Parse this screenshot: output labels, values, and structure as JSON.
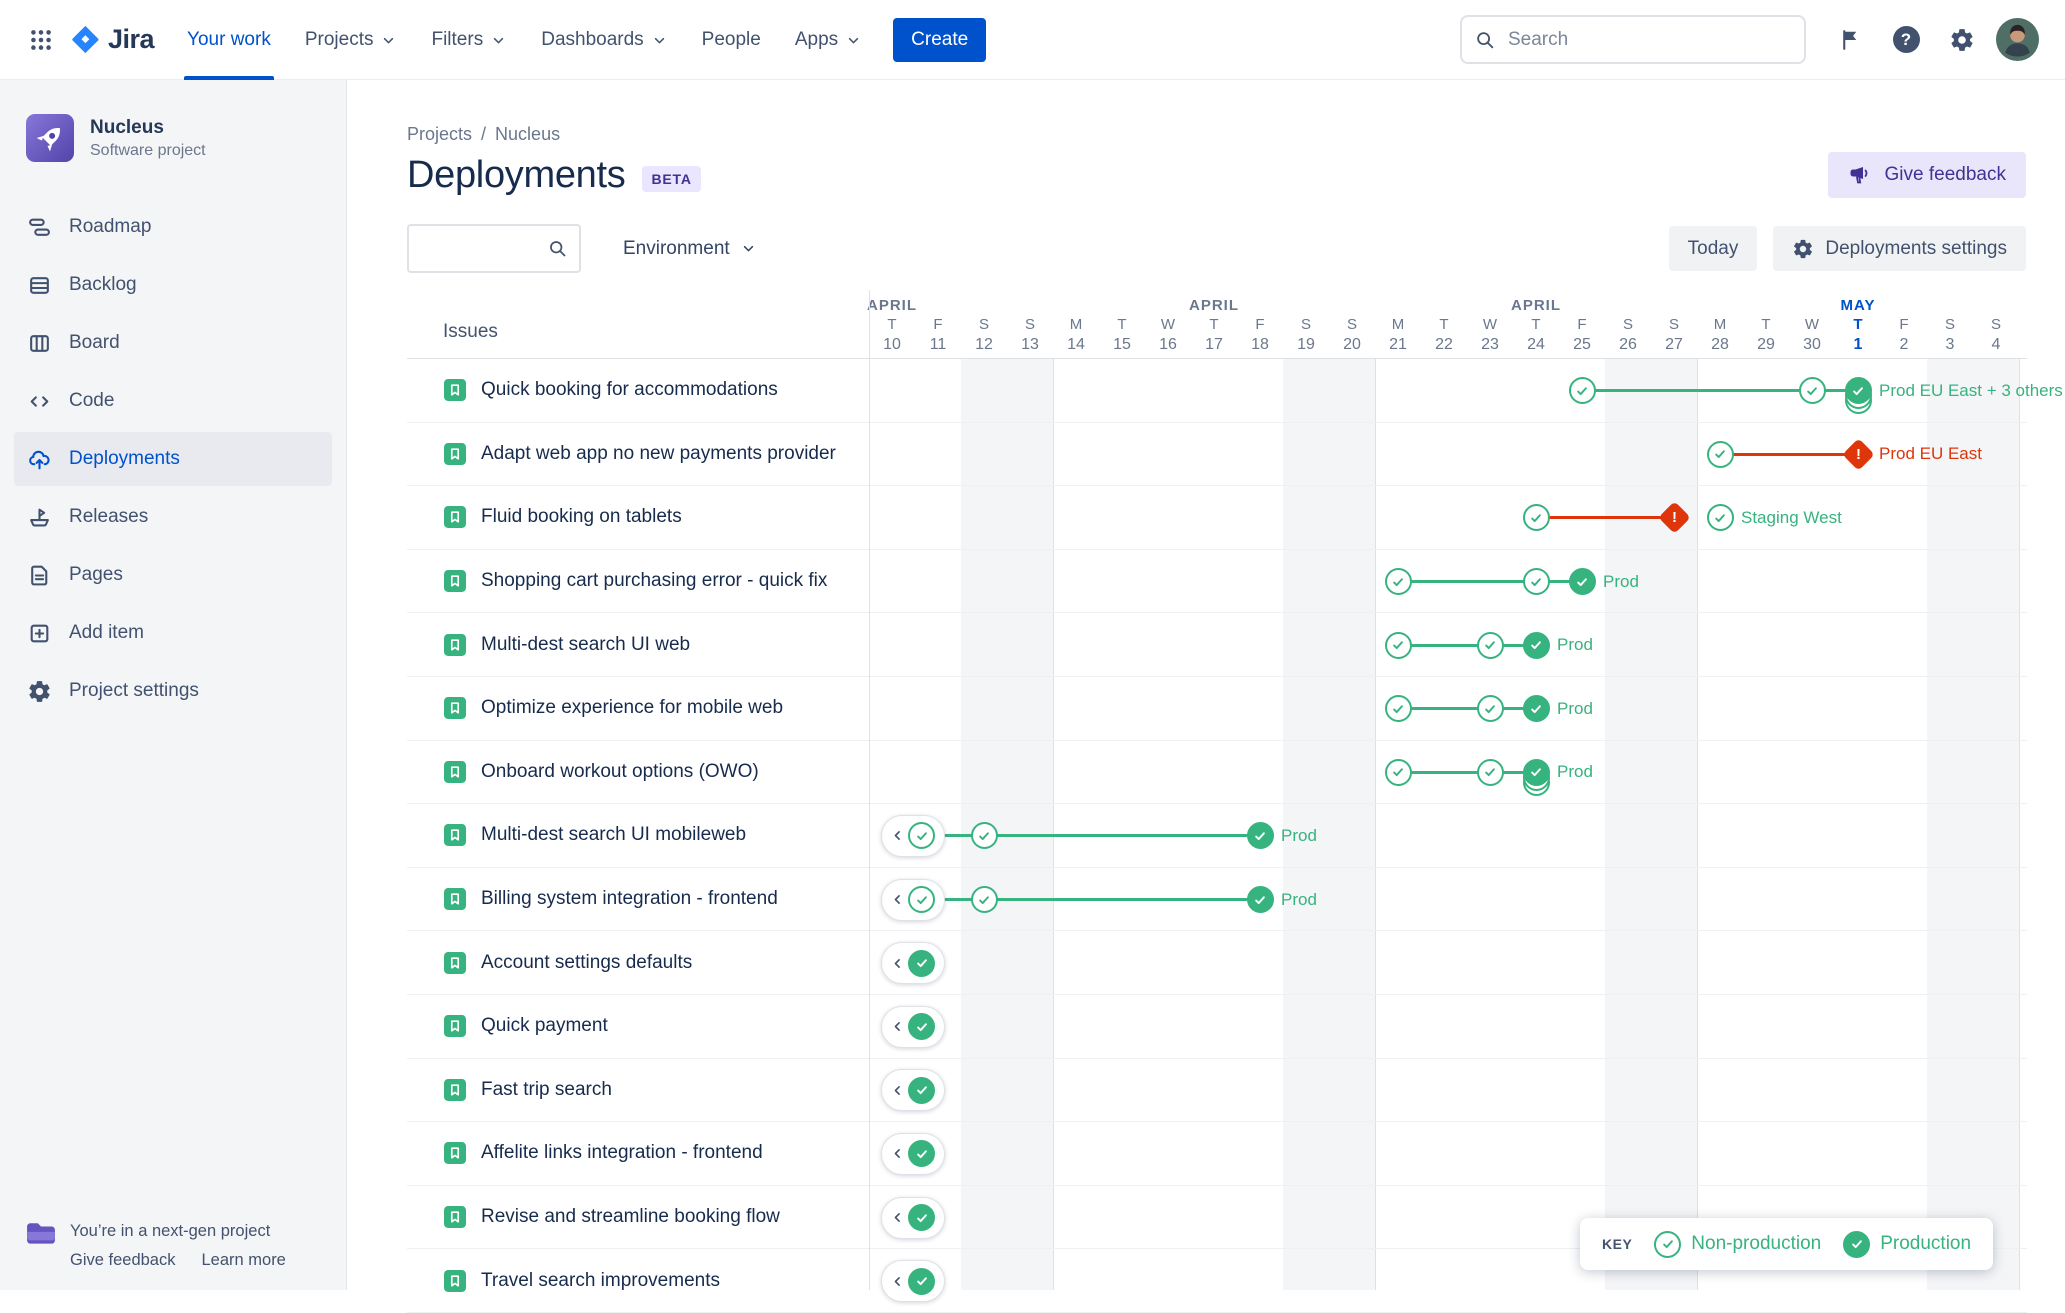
{
  "topnav": {
    "logo_text": "Jira",
    "items": [
      {
        "label": "Your work",
        "active": true,
        "chevron": false
      },
      {
        "label": "Projects",
        "chevron": true
      },
      {
        "label": "Filters",
        "chevron": true
      },
      {
        "label": "Dashboards",
        "chevron": true
      },
      {
        "label": "People",
        "chevron": false
      },
      {
        "label": "Apps",
        "chevron": true
      }
    ],
    "create_label": "Create",
    "search_placeholder": "Search"
  },
  "sidebar": {
    "project_name": "Nucleus",
    "project_type": "Software project",
    "items": [
      {
        "label": "Roadmap"
      },
      {
        "label": "Backlog"
      },
      {
        "label": "Board"
      },
      {
        "label": "Code"
      },
      {
        "label": "Deployments",
        "active": true
      },
      {
        "label": "Releases"
      },
      {
        "label": "Pages"
      },
      {
        "label": "Add item"
      },
      {
        "label": "Project settings"
      }
    ],
    "footer_message": "You’re in a next-gen project",
    "footer_links": [
      "Give feedback",
      "Learn more"
    ]
  },
  "main": {
    "breadcrumb": [
      "Projects",
      "Nucleus"
    ],
    "breadcrumb_separator": "/",
    "title": "Deployments",
    "beta_badge": "BETA",
    "give_feedback_label": "Give feedback",
    "environment_label": "Environment",
    "today_label": "Today",
    "settings_label": "Deployments settings",
    "issues_header": "Issues"
  },
  "legend": {
    "key_label": "KEY",
    "non_production": "Non-production",
    "production": "Production"
  },
  "colors": {
    "accent_blue": "#0052CC",
    "green": "#36B37E",
    "red": "#DE350B"
  },
  "timeline": {
    "months": [
      {
        "label": "APRIL",
        "day": 0
      },
      {
        "label": "APRIL",
        "day": 7
      },
      {
        "label": "APRIL",
        "day": 14
      },
      {
        "label": "MAY",
        "day": 21,
        "accent": true
      }
    ],
    "days": [
      {
        "d": "T",
        "n": 10
      },
      {
        "d": "F",
        "n": 11
      },
      {
        "d": "S",
        "n": 12,
        "we": true
      },
      {
        "d": "S",
        "n": 13,
        "we": true
      },
      {
        "d": "M",
        "n": 14
      },
      {
        "d": "T",
        "n": 15
      },
      {
        "d": "W",
        "n": 16
      },
      {
        "d": "T",
        "n": 17
      },
      {
        "d": "F",
        "n": 18
      },
      {
        "d": "S",
        "n": 19,
        "we": true
      },
      {
        "d": "S",
        "n": 20,
        "we": true
      },
      {
        "d": "M",
        "n": 21
      },
      {
        "d": "T",
        "n": 22
      },
      {
        "d": "W",
        "n": 23
      },
      {
        "d": "T",
        "n": 24
      },
      {
        "d": "F",
        "n": 25
      },
      {
        "d": "S",
        "n": 26,
        "we": true
      },
      {
        "d": "S",
        "n": 27,
        "we": true
      },
      {
        "d": "M",
        "n": 28
      },
      {
        "d": "T",
        "n": 29
      },
      {
        "d": "W",
        "n": 30
      },
      {
        "d": "T",
        "n": 1,
        "today": true
      },
      {
        "d": "F",
        "n": 2
      },
      {
        "d": "S",
        "n": 3,
        "we": true
      },
      {
        "d": "S",
        "n": 4,
        "we": true
      }
    ],
    "rows": [
      {
        "title": "Quick booking for accommodations",
        "e": [
          {
            "t": "line",
            "from": 15,
            "to": 20,
            "c": "green"
          },
          {
            "t": "line",
            "from": 20,
            "to": 21,
            "c": "green"
          },
          {
            "t": "check",
            "s": "outline",
            "d": 15
          },
          {
            "t": "check",
            "s": "outline",
            "d": 20
          },
          {
            "t": "check",
            "s": "stack",
            "d": 21
          },
          {
            "t": "label",
            "d": 21,
            "text": "Prod EU East + 3 others",
            "c": "green"
          }
        ]
      },
      {
        "title": "Adapt web app no new payments provider",
        "e": [
          {
            "t": "line",
            "from": 18,
            "to": 21,
            "c": "red"
          },
          {
            "t": "check",
            "s": "outline",
            "d": 18
          },
          {
            "t": "alert",
            "d": 21
          },
          {
            "t": "label",
            "d": 21,
            "text": "Prod EU East",
            "c": "red"
          }
        ]
      },
      {
        "title": "Fluid booking on tablets",
        "e": [
          {
            "t": "line",
            "from": 14,
            "to": 17,
            "c": "red"
          },
          {
            "t": "check",
            "s": "outline",
            "d": 14
          },
          {
            "t": "alert",
            "d": 17
          },
          {
            "t": "check",
            "s": "outline",
            "d": 18
          },
          {
            "t": "label",
            "d": 18,
            "text": "Staging West",
            "c": "green"
          }
        ]
      },
      {
        "title": "Shopping cart purchasing error - quick fix",
        "e": [
          {
            "t": "line",
            "from": 11,
            "to": 14,
            "c": "green"
          },
          {
            "t": "line",
            "from": 14,
            "to": 15,
            "c": "green"
          },
          {
            "t": "check",
            "s": "outline",
            "d": 11
          },
          {
            "t": "check",
            "s": "outline",
            "d": 14
          },
          {
            "t": "check",
            "s": "solid",
            "d": 15
          },
          {
            "t": "label",
            "d": 15,
            "text": "Prod",
            "c": "green"
          }
        ]
      },
      {
        "title": "Multi-dest search UI web",
        "e": [
          {
            "t": "line",
            "from": 11,
            "to": 13,
            "c": "green"
          },
          {
            "t": "line",
            "from": 13,
            "to": 14,
            "c": "green"
          },
          {
            "t": "check",
            "s": "outline",
            "d": 11
          },
          {
            "t": "check",
            "s": "outline",
            "d": 13
          },
          {
            "t": "check",
            "s": "solid",
            "d": 14
          },
          {
            "t": "label",
            "d": 14,
            "text": "Prod",
            "c": "green"
          }
        ]
      },
      {
        "title": "Optimize experience for mobile web",
        "e": [
          {
            "t": "line",
            "from": 11,
            "to": 13,
            "c": "green"
          },
          {
            "t": "line",
            "from": 13,
            "to": 14,
            "c": "green"
          },
          {
            "t": "check",
            "s": "outline",
            "d": 11
          },
          {
            "t": "check",
            "s": "outline",
            "d": 13
          },
          {
            "t": "check",
            "s": "solid",
            "d": 14
          },
          {
            "t": "label",
            "d": 14,
            "text": "Prod",
            "c": "green"
          }
        ]
      },
      {
        "title": "Onboard workout options (OWO)",
        "e": [
          {
            "t": "line",
            "from": 11,
            "to": 13,
            "c": "green"
          },
          {
            "t": "line",
            "from": 13,
            "to": 14,
            "c": "green"
          },
          {
            "t": "check",
            "s": "outline",
            "d": 11
          },
          {
            "t": "check",
            "s": "outline",
            "d": 13
          },
          {
            "t": "check",
            "s": "stack",
            "d": 14
          },
          {
            "t": "label",
            "d": 14,
            "text": "Prod",
            "c": "green"
          }
        ]
      },
      {
        "title": "Multi-dest search UI mobileweb",
        "e": [
          {
            "t": "pill",
            "d": 0,
            "check": "outline"
          },
          {
            "t": "line",
            "from": 0,
            "to": 2,
            "c": "green"
          },
          {
            "t": "check",
            "s": "outline",
            "d": 2
          },
          {
            "t": "line",
            "from": 2,
            "to": 8,
            "c": "green"
          },
          {
            "t": "check",
            "s": "solid",
            "d": 8
          },
          {
            "t": "label",
            "d": 8,
            "text": "Prod",
            "c": "green"
          }
        ]
      },
      {
        "title": "Billing system integration - frontend",
        "e": [
          {
            "t": "pill",
            "d": 0,
            "check": "outline"
          },
          {
            "t": "line",
            "from": 0,
            "to": 2,
            "c": "green"
          },
          {
            "t": "check",
            "s": "outline",
            "d": 2
          },
          {
            "t": "line",
            "from": 2,
            "to": 8,
            "c": "green"
          },
          {
            "t": "check",
            "s": "solid",
            "d": 8
          },
          {
            "t": "label",
            "d": 8,
            "text": "Prod",
            "c": "green"
          }
        ]
      },
      {
        "title": "Account settings defaults",
        "e": [
          {
            "t": "pill",
            "d": 0,
            "check": "solid"
          }
        ]
      },
      {
        "title": "Quick payment",
        "e": [
          {
            "t": "pill",
            "d": 0,
            "check": "solid"
          }
        ]
      },
      {
        "title": "Fast trip search",
        "e": [
          {
            "t": "pill",
            "d": 0,
            "check": "solid"
          }
        ]
      },
      {
        "title": "Affelite links integration - frontend",
        "e": [
          {
            "t": "pill",
            "d": 0,
            "check": "solid"
          }
        ]
      },
      {
        "title": "Revise and streamline booking flow",
        "e": [
          {
            "t": "pill",
            "d": 0,
            "check": "solid"
          }
        ]
      },
      {
        "title": "Travel search improvements",
        "e": [
          {
            "t": "pill",
            "d": 0,
            "check": "solid"
          }
        ]
      }
    ]
  }
}
